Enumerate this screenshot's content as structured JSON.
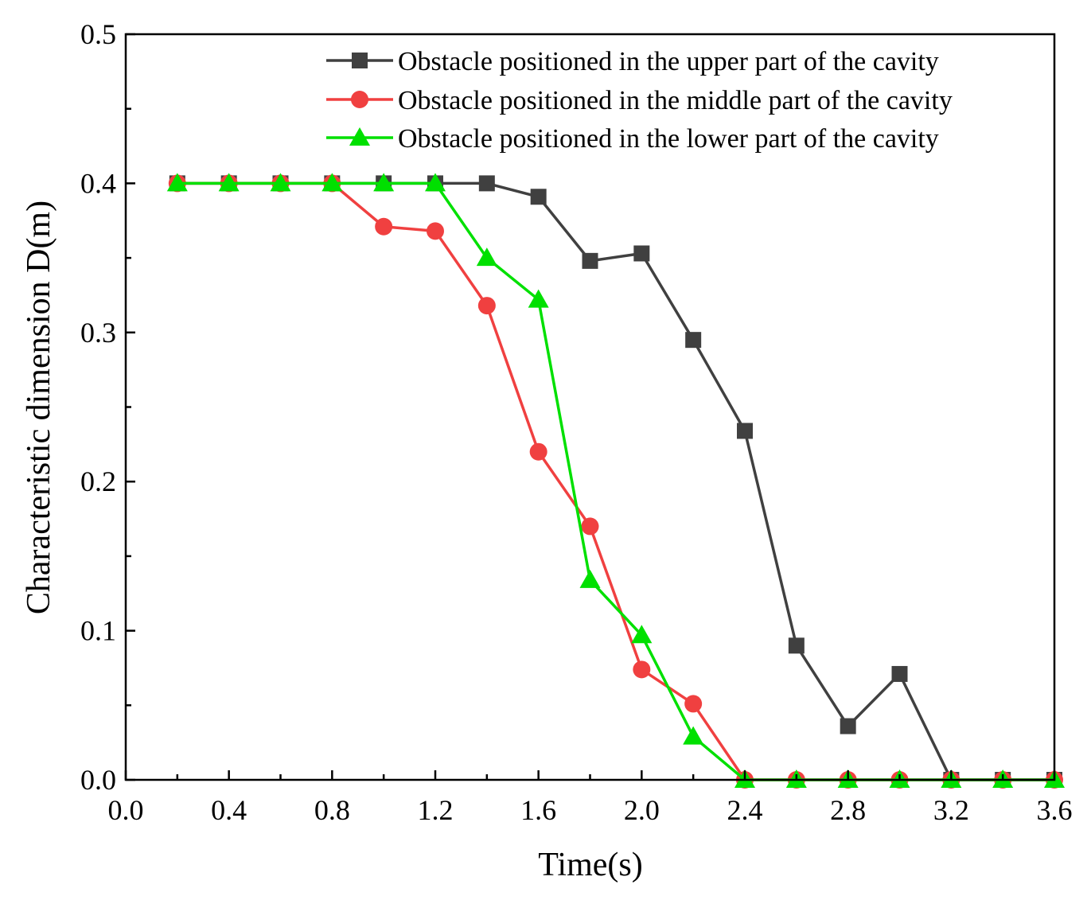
{
  "chart_data": {
    "type": "line",
    "title": "",
    "xlabel": "Time(s)",
    "ylabel": "Characteristic dimension D(m)",
    "xlim": [
      0.0,
      3.6
    ],
    "ylim": [
      0.0,
      0.5
    ],
    "xticks": [
      "0.0",
      "0.4",
      "0.8",
      "1.2",
      "1.6",
      "2.0",
      "2.4",
      "2.8",
      "3.2",
      "3.6"
    ],
    "yticks": [
      "0.0",
      "0.1",
      "0.2",
      "0.3",
      "0.4",
      "0.5"
    ],
    "grid": false,
    "legend_position": "top-right",
    "x": [
      0.2,
      0.4,
      0.6,
      0.8,
      1.0,
      1.2,
      1.4,
      1.6,
      1.8,
      2.0,
      2.2,
      2.4,
      2.6,
      2.8,
      3.0,
      3.2,
      3.4,
      3.6
    ],
    "series": [
      {
        "name": "Obstacle positioned in the upper part of the cavity",
        "marker": "square",
        "color": "#404040",
        "values": [
          0.4,
          0.4,
          0.4,
          0.4,
          0.4,
          0.4,
          0.4,
          0.391,
          0.348,
          0.353,
          0.295,
          0.234,
          0.09,
          0.036,
          0.071,
          0.0,
          0.0,
          0.0
        ]
      },
      {
        "name": "Obstacle positioned in the middle part of the cavity",
        "marker": "circle",
        "color": "#f04040",
        "values": [
          0.4,
          0.4,
          0.4,
          0.4,
          0.371,
          0.368,
          0.318,
          0.22,
          0.17,
          0.074,
          0.051,
          0.0,
          0.0,
          0.0,
          0.0,
          0.0,
          0.0,
          0.0
        ]
      },
      {
        "name": "Obstacle positioned in the lower part of the cavity",
        "marker": "triangle",
        "color": "#00e000",
        "values": [
          0.4,
          0.4,
          0.4,
          0.4,
          0.4,
          0.4,
          0.35,
          0.322,
          0.134,
          0.097,
          0.029,
          0.0,
          0.0,
          0.0,
          0.0,
          0.0,
          0.0,
          0.0
        ]
      }
    ]
  }
}
